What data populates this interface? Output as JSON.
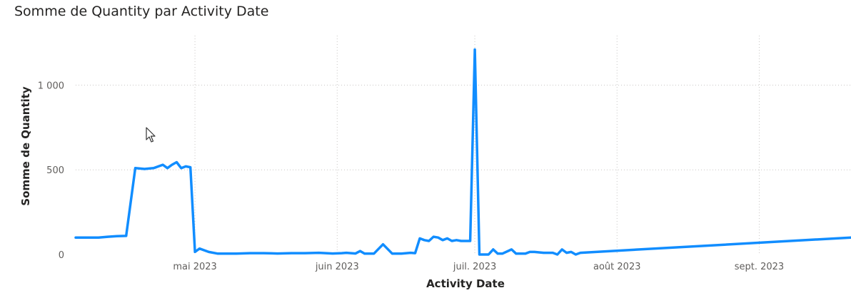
{
  "visual": {
    "title": "Somme de Quantity par Activity Date"
  },
  "chart_data": {
    "type": "line",
    "title": "Somme de Quantity par Activity Date",
    "xlabel": "Activity Date",
    "ylabel": "Somme de Quantity",
    "ylim": [
      0,
      1250
    ],
    "xlim": [
      "2023-04-05",
      "2023-09-21"
    ],
    "y_ticks": [
      0,
      500,
      1000
    ],
    "y_tick_labels": [
      "0",
      "500",
      "1 000"
    ],
    "x_ticks": [
      "2023-05-01",
      "2023-06-01",
      "2023-07-01",
      "2023-08-01",
      "2023-09-01"
    ],
    "x_tick_labels": [
      "mai 2023",
      "juin 2023",
      "juil. 2023",
      "août 2023",
      "sept. 2023"
    ],
    "grid": "dotted vertical and horizontal",
    "line_color": "#118DFF",
    "series": [
      {
        "x": [
          "2023-04-05",
          "2023-04-07",
          "2023-04-10",
          "2023-04-12",
          "2023-04-14",
          "2023-04-16",
          "2023-04-18",
          "2023-04-20",
          "2023-04-22",
          "2023-04-24",
          "2023-04-25",
          "2023-04-26",
          "2023-04-27",
          "2023-04-28",
          "2023-04-29",
          "2023-04-30",
          "2023-05-01",
          "2023-05-02",
          "2023-05-04",
          "2023-05-06",
          "2023-05-08",
          "2023-05-10",
          "2023-05-13",
          "2023-05-16",
          "2023-05-19",
          "2023-05-22",
          "2023-05-25",
          "2023-05-28",
          "2023-05-31",
          "2023-06-02",
          "2023-06-03",
          "2023-06-05",
          "2023-06-06",
          "2023-06-07",
          "2023-06-09",
          "2023-06-11",
          "2023-06-13",
          "2023-06-14",
          "2023-06-15",
          "2023-06-17",
          "2023-06-18",
          "2023-06-19",
          "2023-06-20",
          "2023-06-21",
          "2023-06-22",
          "2023-06-23",
          "2023-06-24",
          "2023-06-25",
          "2023-06-26",
          "2023-06-27",
          "2023-06-28",
          "2023-06-30",
          "2023-07-01",
          "2023-07-02",
          "2023-07-04",
          "2023-07-05",
          "2023-07-06",
          "2023-07-07",
          "2023-07-09",
          "2023-07-10",
          "2023-07-11",
          "2023-07-12",
          "2023-07-13",
          "2023-07-14",
          "2023-07-16",
          "2023-07-18",
          "2023-07-19",
          "2023-07-20",
          "2023-07-21",
          "2023-07-22",
          "2023-07-23",
          "2023-07-24",
          "2023-09-21"
        ],
        "y": [
          100,
          100,
          100,
          105,
          108,
          110,
          510,
          505,
          510,
          530,
          510,
          530,
          545,
          510,
          520,
          515,
          15,
          35,
          15,
          5,
          5,
          5,
          8,
          8,
          6,
          8,
          8,
          10,
          6,
          8,
          10,
          6,
          20,
          5,
          5,
          60,
          5,
          5,
          5,
          10,
          8,
          95,
          85,
          80,
          105,
          100,
          85,
          95,
          80,
          85,
          80,
          80,
          1210,
          0,
          0,
          30,
          5,
          5,
          30,
          5,
          5,
          5,
          15,
          15,
          10,
          10,
          0,
          30,
          10,
          15,
          0,
          10,
          100
        ]
      }
    ]
  }
}
